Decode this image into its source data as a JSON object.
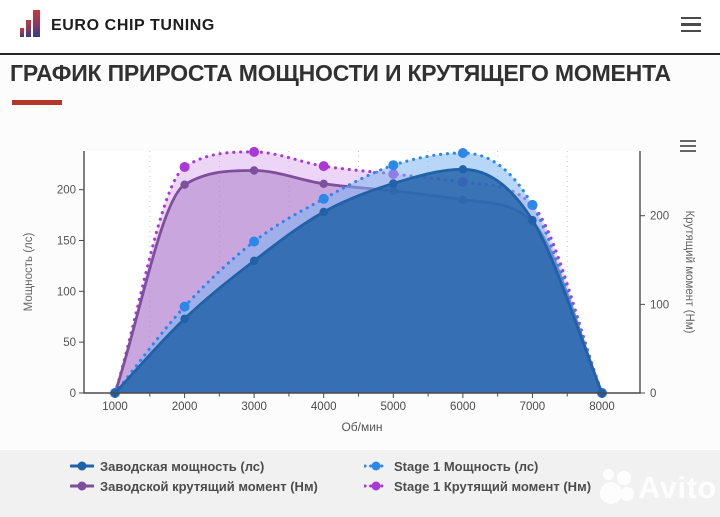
{
  "header": {
    "brand": "EURO CHIP TUNING"
  },
  "title": "ГРАФИК ПРИРОСТА МОЩНОСТИ И КРУТЯЩЕГО МОМЕНТА",
  "watermark": "Avito",
  "accent_color": "#b5372b",
  "chart_data": {
    "type": "area",
    "x": [
      1000,
      2000,
      3000,
      4000,
      5000,
      6000,
      7000,
      8000
    ],
    "xlabel": "Об/мин",
    "x_tick_labels": [
      "1000",
      "2000",
      "3000",
      "4000",
      "5000",
      "6000",
      "7000",
      "8000"
    ],
    "grid": "vertical dotted minor gridlines at 1500..7500, no horizontal gridlines",
    "legend_position": "bottom",
    "y_left": {
      "label": "Мощность (лс)",
      "ticks": [
        0,
        50,
        100,
        150,
        200
      ],
      "max": 238
    },
    "y_right": {
      "label": "Крутящий момент (Нм)",
      "ticks": [
        0,
        100,
        200
      ],
      "max": 273
    },
    "series": [
      {
        "name": "Заводская мощность (лс)",
        "axis": "left",
        "line": "solid",
        "color": "#2062a8",
        "fill": "rgba(32,98,168,0.82)",
        "marker_radius": 4.2,
        "values": [
          0,
          73,
          130,
          178,
          206,
          220,
          170,
          0
        ]
      },
      {
        "name": "Stage 1 Мощность (лс)",
        "axis": "left",
        "line": "dotted",
        "color": "#2b87ea",
        "fill": "rgba(125,180,240,0.55)",
        "marker_radius": 5,
        "values": [
          0,
          85,
          149,
          191,
          224,
          236,
          185,
          0
        ]
      },
      {
        "name": "Заводской крутящий момент (Нм)",
        "axis": "right",
        "line": "solid",
        "color": "#7d4f9c",
        "fill": "rgba(168,120,200,0.5)",
        "marker_radius": 4.2,
        "values": [
          0,
          235,
          251,
          236,
          228,
          218,
          193,
          0
        ]
      },
      {
        "name": "Stage 1 Крутящий момент (Нм)",
        "axis": "right",
        "line": "dotted",
        "color": "#a838d8",
        "fill": "rgba(210,150,235,0.4)",
        "marker_radius": 5,
        "values": [
          0,
          255,
          272,
          256,
          247,
          238,
          212,
          0
        ]
      }
    ]
  }
}
